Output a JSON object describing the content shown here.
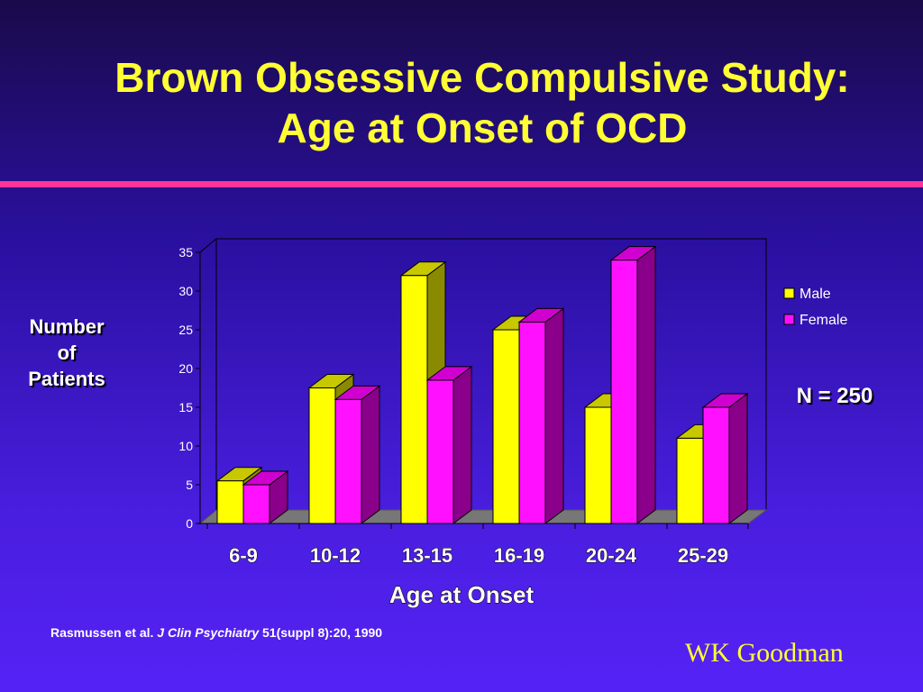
{
  "title_line1": "Brown Obsessive Compulsive Study:",
  "title_line2": "Age at Onset of OCD",
  "ylabel": [
    "Number",
    "of",
    "Patients"
  ],
  "note": "N = 250",
  "citation": {
    "authors": "Rasmussen et al. ",
    "journal": "J Clin Psychiatry",
    "details": " 51(suppl 8):20, 1990"
  },
  "credit": "WK Goodman",
  "colors": {
    "male_face": "#ffff00",
    "male_side": "#8a8a00",
    "male_top": "#c8c800",
    "female_face": "#ff11ff",
    "female_side": "#8a008a",
    "female_top": "#d000d0",
    "accent": "#ff3399"
  },
  "chart_data": {
    "type": "bar",
    "categories": [
      "6-9",
      "10-12",
      "13-15",
      "16-19",
      "20-24",
      "25-29"
    ],
    "series": [
      {
        "name": "Male",
        "values": [
          5.5,
          17.5,
          32,
          25,
          15,
          11
        ]
      },
      {
        "name": "Female",
        "values": [
          5,
          16,
          18.5,
          26,
          34,
          15
        ]
      }
    ],
    "title": "",
    "xlabel": "Age at Onset",
    "ylabel": "Number of Patients",
    "ylim": [
      0,
      35
    ],
    "yticks": [
      0,
      5,
      10,
      15,
      20,
      25,
      30,
      35
    ],
    "legend_position": "right",
    "grid": false,
    "three_d": true
  }
}
